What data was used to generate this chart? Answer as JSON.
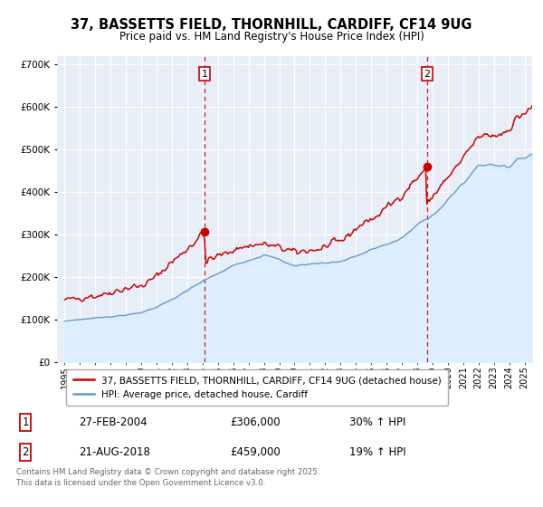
{
  "title1": "37, BASSETTS FIELD, THORNHILL, CARDIFF, CF14 9UG",
  "title2": "Price paid vs. HM Land Registry's House Price Index (HPI)",
  "legend_label1": "37, BASSETTS FIELD, THORNHILL, CARDIFF, CF14 9UG (detached house)",
  "legend_label2": "HPI: Average price, detached house, Cardiff",
  "transaction1_date": "27-FEB-2004",
  "transaction1_price": "£306,000",
  "transaction1_hpi": "30% ↑ HPI",
  "transaction2_date": "21-AUG-2018",
  "transaction2_price": "£459,000",
  "transaction2_hpi": "19% ↑ HPI",
  "footer": "Contains HM Land Registry data © Crown copyright and database right 2025.\nThis data is licensed under the Open Government Licence v3.0.",
  "red_color": "#cc0000",
  "blue_color": "#6699cc",
  "blue_fill": "#ddeeff",
  "bg_color": "#e8eef8",
  "marker1_x": 2004.15,
  "marker1_y": 306000,
  "marker2_x": 2018.63,
  "marker2_y": 459000,
  "vline1_x": 2004.15,
  "vline2_x": 2018.63,
  "ylim": [
    0,
    720000
  ],
  "xlim": [
    1994.5,
    2025.5
  ]
}
